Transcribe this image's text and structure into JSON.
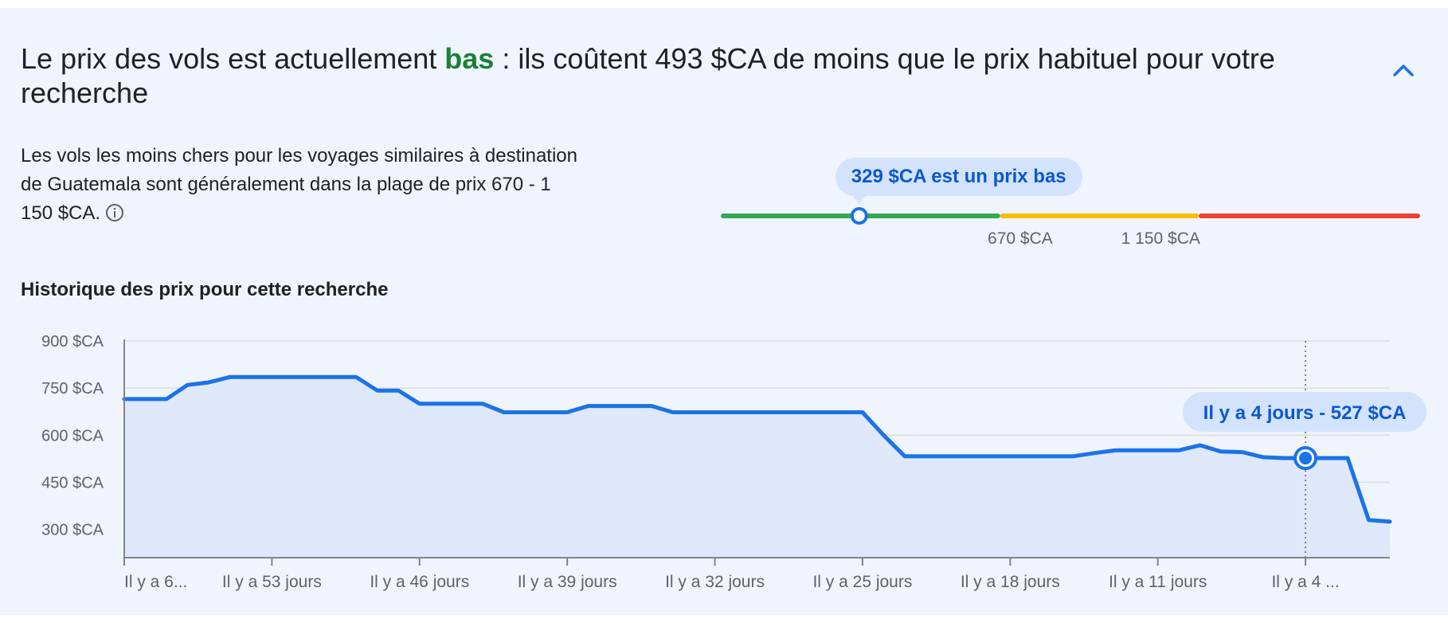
{
  "insight": {
    "title_before": "Le prix des vols est actuellement ",
    "title_highlight": "bas",
    "title_after": " : ils coûtent 493 $CA de moins que le prix habituel pour votre recherche",
    "description": "Les vols les moins chers pour les voyages similaires à destination de Guatemala sont généralement dans la plage de prix 670 - 1 150 $CA.",
    "collapse_icon": "chevron-up-icon",
    "info_icon": "info-icon"
  },
  "range_meter": {
    "bubble_text": "329 $CA est un prix bas",
    "low_label": "670 $CA",
    "high_label": "1 150 $CA",
    "current_price": 329,
    "low_bound": 670,
    "high_bound": 1150,
    "scale_min": 0,
    "scale_max": 1680,
    "colors": {
      "low": "#34a853",
      "typical": "#fbbc04",
      "high": "#ea4335",
      "marker": "#1a73e8"
    }
  },
  "history": {
    "title": "Historique des prix pour cette recherche",
    "tooltip": "Il y a 4 jours - 527 $CA"
  },
  "chart_data": {
    "type": "area",
    "title": "Historique des prix pour cette recherche",
    "xlabel": "",
    "ylabel": "",
    "y_tick_labels": [
      "900 $CA",
      "750 $CA",
      "600 $CA",
      "450 $CA",
      "300 $CA"
    ],
    "y_tick_values": [
      900,
      750,
      600,
      450,
      300
    ],
    "ylim": [
      210,
      900
    ],
    "x_ticks": [
      {
        "day": 60,
        "label": "Il y a 6..."
      },
      {
        "day": 53,
        "label": "Il y a 53 jours"
      },
      {
        "day": 46,
        "label": "Il y a 46 jours"
      },
      {
        "day": 39,
        "label": "Il y a 39 jours"
      },
      {
        "day": 32,
        "label": "Il y a 32 jours"
      },
      {
        "day": 25,
        "label": "Il y a 25 jours"
      },
      {
        "day": 18,
        "label": "Il y a 18 jours"
      },
      {
        "day": 11,
        "label": "Il y a 11 jours"
      },
      {
        "day": 4,
        "label": "Il y a 4 ..."
      }
    ],
    "x_unit": "days ago",
    "xlim": [
      60,
      0
    ],
    "grid": true,
    "selected_point": {
      "day": 4,
      "value": 527
    },
    "series": [
      {
        "color": "#1a73e8",
        "fill": "#dfe8fa",
        "points": [
          [
            60,
            715
          ],
          [
            58,
            715
          ],
          [
            57,
            760
          ],
          [
            56,
            768
          ],
          [
            55,
            785
          ],
          [
            54,
            785
          ],
          [
            53,
            785
          ],
          [
            52,
            785
          ],
          [
            51,
            785
          ],
          [
            50,
            785
          ],
          [
            49,
            785
          ],
          [
            48,
            742
          ],
          [
            47,
            742
          ],
          [
            46,
            700
          ],
          [
            45,
            700
          ],
          [
            44,
            700
          ],
          [
            43,
            700
          ],
          [
            42,
            673
          ],
          [
            41,
            673
          ],
          [
            40,
            673
          ],
          [
            39,
            673
          ],
          [
            38,
            693
          ],
          [
            37,
            693
          ],
          [
            36,
            693
          ],
          [
            35,
            693
          ],
          [
            34,
            673
          ],
          [
            33,
            673
          ],
          [
            32,
            673
          ],
          [
            25,
            673
          ],
          [
            24,
            600
          ],
          [
            23,
            533
          ],
          [
            22,
            533
          ],
          [
            15,
            533
          ],
          [
            14,
            543
          ],
          [
            13,
            552
          ],
          [
            10,
            552
          ],
          [
            9,
            568
          ],
          [
            8,
            548
          ],
          [
            7,
            546
          ],
          [
            6,
            530
          ],
          [
            5,
            527
          ],
          [
            4,
            527
          ],
          [
            3,
            527
          ],
          [
            2,
            527
          ],
          [
            1,
            330
          ],
          [
            0,
            325
          ]
        ]
      }
    ]
  }
}
